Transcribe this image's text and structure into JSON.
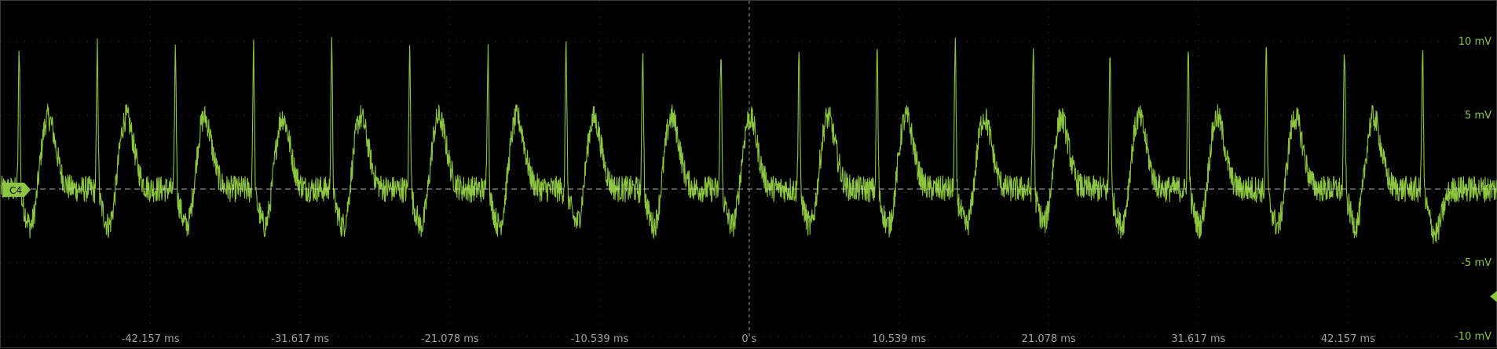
{
  "chart_data": {
    "type": "line",
    "channel": "C4",
    "trace_color": "#8cc63f",
    "grid": true,
    "x_axis": {
      "ticks": [
        "-42.157 ms",
        "-31.617 ms",
        "-21.078 ms",
        "-10.539 ms",
        "0 s",
        "10.539 ms",
        "21.078 ms",
        "31.617 ms",
        "42.157 ms"
      ],
      "tick_values_ms": [
        -42.157,
        -31.617,
        -21.078,
        -10.539,
        0,
        10.539,
        21.078,
        31.617,
        42.157
      ],
      "range_ms": [
        -52.696,
        52.696
      ]
    },
    "y_axis": {
      "ticks": [
        "10 mV",
        "5 mV",
        "0",
        "-5 mV",
        "-10 mV"
      ],
      "tick_values_mV": [
        10,
        5,
        0,
        -5,
        -10
      ],
      "range_mV": [
        -10,
        10
      ]
    },
    "series": [
      {
        "period_ms": 5.44,
        "baseline_mV": 0,
        "spike_peak_mV": 9.9,
        "secondary_peak_mV": 5.0,
        "trough_mV": -3.0,
        "noise_mV": 0.9,
        "spike_times_ms": [
          -51.4,
          -45.9,
          -40.4,
          -34.9,
          -29.4,
          -23.9,
          -18.4,
          -12.9,
          -7.5,
          -2.0,
          3.5,
          9.0,
          14.5,
          20.0,
          25.4,
          30.9,
          36.4,
          41.9,
          47.4
        ]
      }
    ]
  }
}
